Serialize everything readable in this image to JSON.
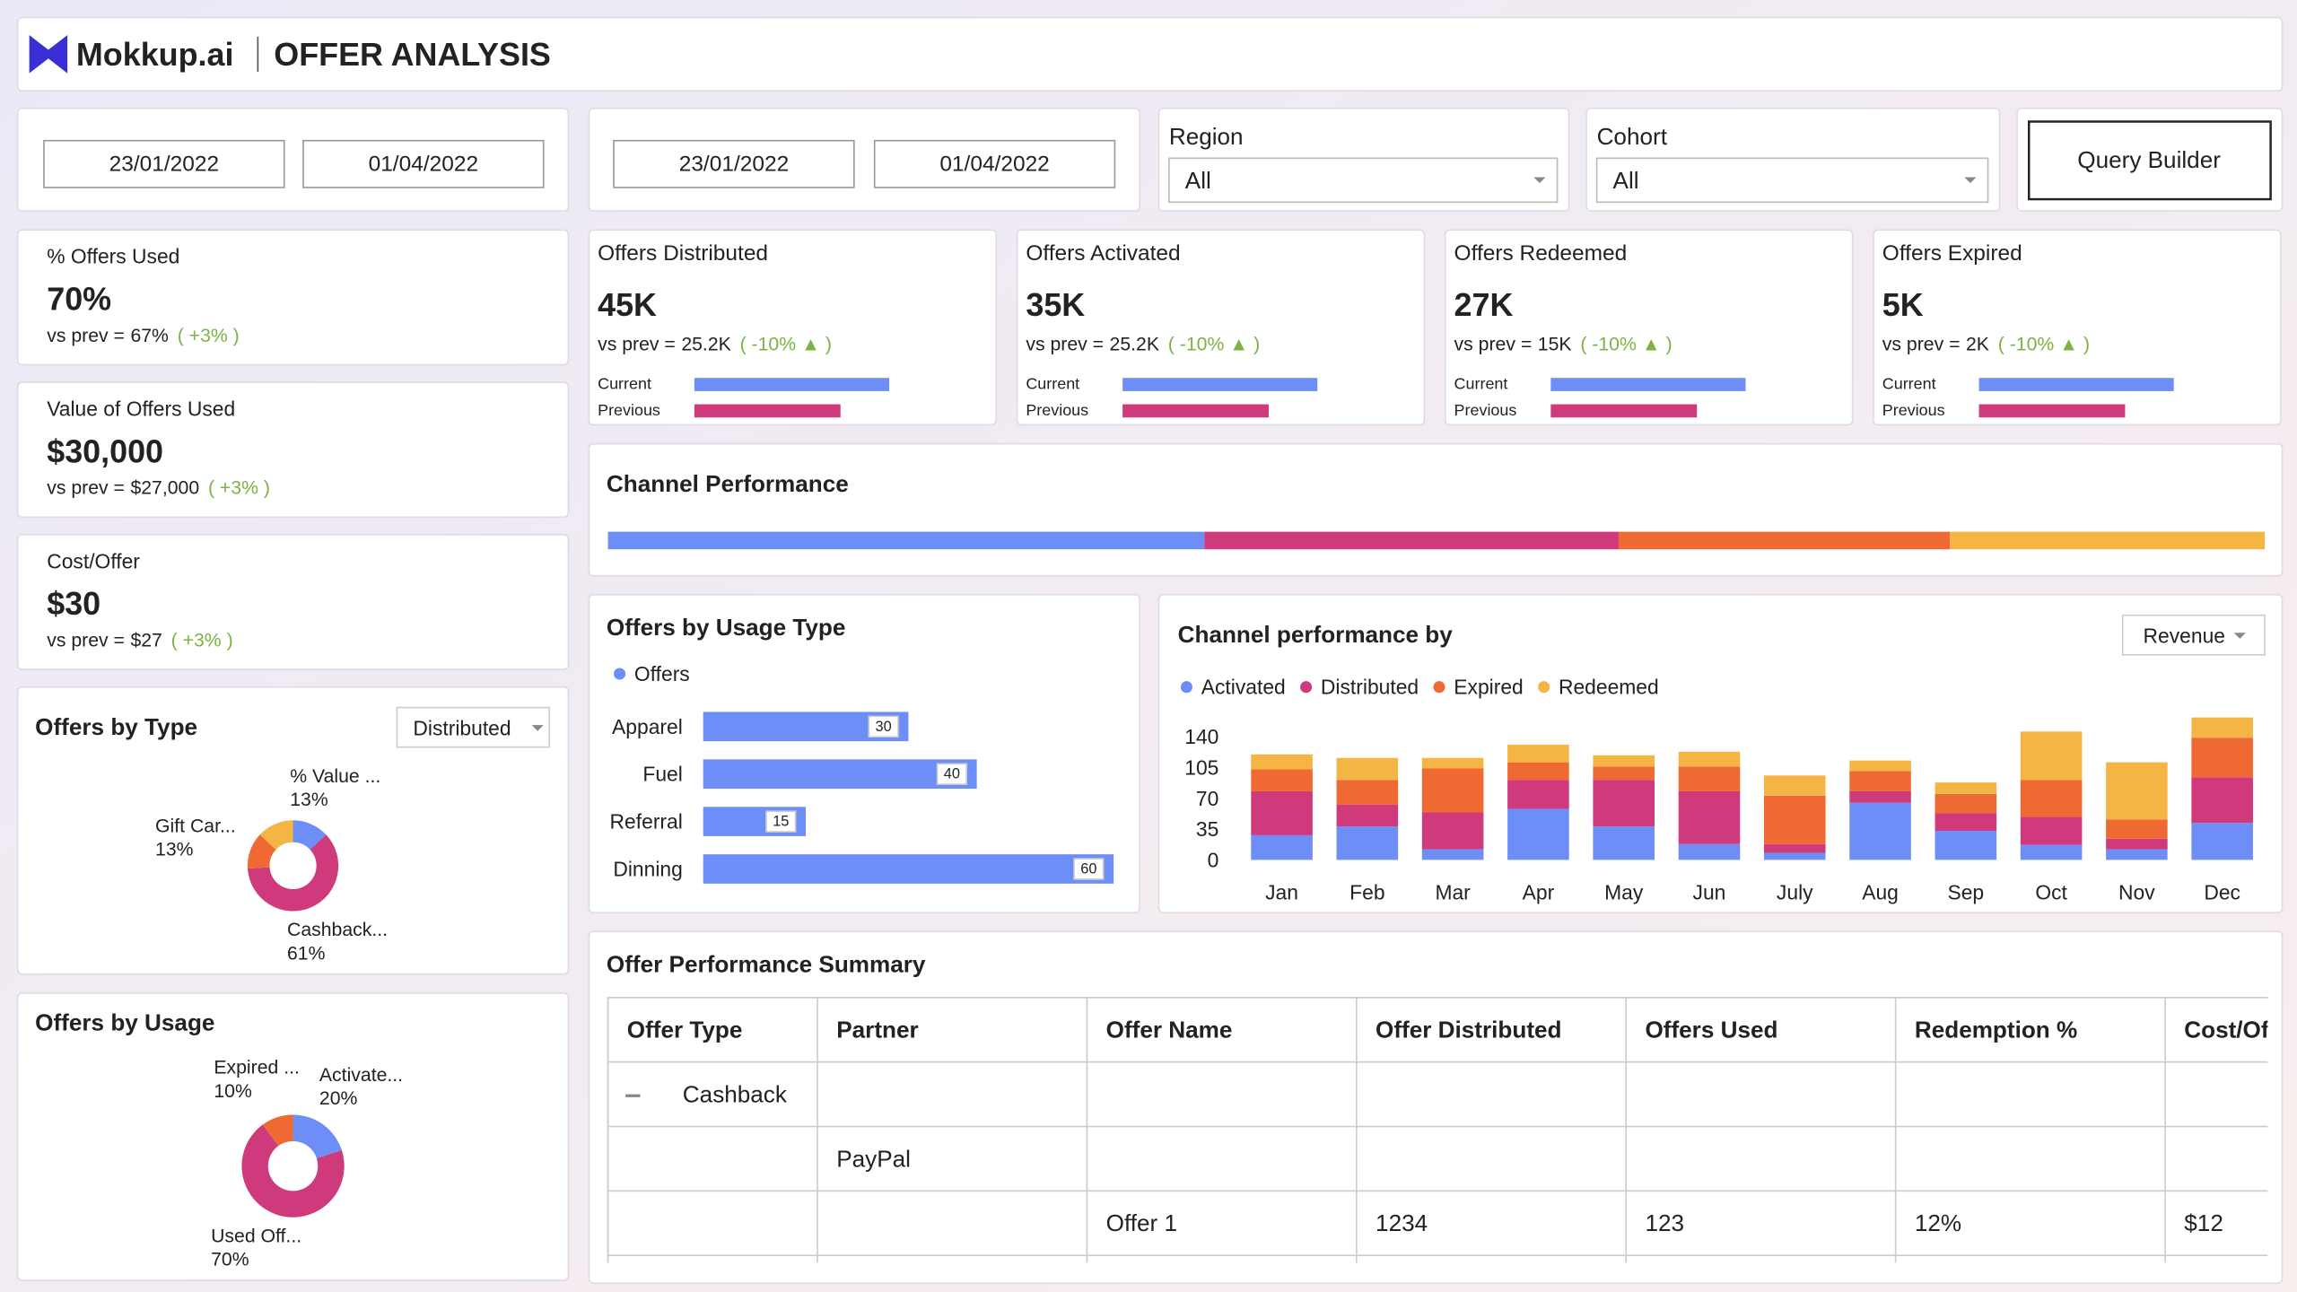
{
  "header": {
    "logo": "Mokkup.ai",
    "title": "OFFER ANALYSIS"
  },
  "filters": {
    "date_ranges": [
      [
        "23/01/2022",
        "01/04/2022"
      ],
      [
        "23/01/2022",
        "01/04/2022"
      ]
    ],
    "dropdowns": [
      {
        "label": "Region",
        "value": "All"
      },
      {
        "label": "Cohort",
        "value": "All"
      }
    ],
    "button": "Query Builder"
  },
  "summary_cards": [
    {
      "title": "% Offers Used",
      "value": "70%",
      "prev_label": "vs prev =",
      "prev": "67%",
      "change": "( +3% )"
    },
    {
      "title": "Value of Offers Used",
      "value": "$30,000",
      "prev_label": "vs prev =",
      "prev": "$27,000",
      "change": "( +3% )"
    },
    {
      "title": "Cost/Offer",
      "value": "$30",
      "prev_label": "vs prev =",
      "prev": "$27",
      "change": "( +3% )"
    }
  ],
  "kpi_cards": [
    {
      "title": "Offers Distributed",
      "value": "45K",
      "prev_label": "vs prev =",
      "prev": "25.2K",
      "change": "( -10% ▲ )",
      "bar_labels": [
        "Current",
        "Previous"
      ],
      "bars": [
        100,
        75
      ]
    },
    {
      "title": "Offers Activated",
      "value": "35K",
      "prev_label": "vs prev =",
      "prev": "25.2K",
      "change": "( -10% ▲ )",
      "bar_labels": [
        "Current",
        "Previous"
      ],
      "bars": [
        100,
        75
      ]
    },
    {
      "title": "Offers Redeemed",
      "value": "27K",
      "prev_label": "vs prev =",
      "prev": "15K",
      "change": "( -10% ▲ )",
      "bar_labels": [
        "Current",
        "Previous"
      ],
      "bars": [
        100,
        75
      ]
    },
    {
      "title": "Offers Expired",
      "value": "5K",
      "prev_label": "vs prev =",
      "prev": "2K",
      "change": "( -10% ▲ )",
      "bar_labels": [
        "Current",
        "Previous"
      ],
      "bars": [
        100,
        75
      ]
    }
  ],
  "channel_performance": {
    "title": "Channel Performance",
    "colors": [
      "#6e8ef7",
      "#cf3a7c",
      "#ef6a32",
      "#f4b545"
    ],
    "values": [
      36,
      25,
      20,
      19
    ]
  },
  "usage_type": {
    "title": "Offers by Usage Type",
    "series_name": "Offers",
    "color": "#6e8ef7",
    "categories": [
      "Apparel",
      "Fuel",
      "Referral",
      "Dinning"
    ],
    "values": [
      30,
      40,
      15,
      60
    ]
  },
  "monthly": {
    "title": "Channel performance by",
    "dropdown": "Revenue",
    "categories": [
      "Jan",
      "Feb",
      "Mar",
      "Apr",
      "May",
      "Jun",
      "July",
      "Aug",
      "Sep",
      "Oct",
      "Nov",
      "Dec"
    ],
    "series": [
      {
        "name": "Activated",
        "color": "#6e8ef7",
        "values": [
          28,
          38,
          12,
          58,
          38,
          18,
          8,
          65,
          33,
          17,
          12,
          42
        ]
      },
      {
        "name": "Distributed",
        "color": "#cf3a7c",
        "values": [
          50,
          25,
          42,
          33,
          53,
          60,
          10,
          13,
          20,
          32,
          12,
          52
        ]
      },
      {
        "name": "Expired",
        "color": "#ef6a32",
        "values": [
          25,
          28,
          50,
          20,
          15,
          28,
          55,
          23,
          22,
          42,
          22,
          45
        ]
      },
      {
        "name": "Redeemed",
        "color": "#f4b545",
        "values": [
          17,
          25,
          12,
          20,
          13,
          17,
          23,
          12,
          13,
          55,
          65,
          23
        ]
      }
    ],
    "ylim": [
      0,
      140
    ],
    "yticks": [
      0,
      35,
      70,
      105,
      140
    ]
  },
  "offers_by_type": {
    "title": "Offers by Type",
    "dropdown": "Distributed",
    "labels": [
      "% Value ...",
      "Cashback...",
      "Gift Car...",
      null
    ],
    "values": [
      13,
      61,
      13,
      13
    ],
    "value_labels": [
      "13%",
      "61%",
      "13%",
      null
    ],
    "colors": [
      "#6e8ef7",
      "#cf3a7c",
      "#ef6a32",
      "#f4b545"
    ]
  },
  "offers_by_usage": {
    "title": "Offers by Usage",
    "labels": [
      "Activate...",
      "Used Off...",
      "Expired ..."
    ],
    "values": [
      20,
      70,
      10
    ],
    "value_labels": [
      "20%",
      "70%",
      "10%"
    ],
    "colors": [
      "#6e8ef7",
      "#cf3a7c",
      "#ef6a32"
    ]
  },
  "table": {
    "title": "Offer Performance Summary",
    "columns": [
      "Offer Type",
      "Partner",
      "Offer Name",
      "Offer Distributed",
      "Offers Used",
      "Redemption %",
      "Cost/Offer"
    ],
    "rows": [
      [
        "Cashback",
        null,
        null,
        null,
        null,
        null,
        null
      ],
      [
        null,
        "PayPal",
        null,
        null,
        null,
        null,
        null
      ],
      [
        null,
        null,
        "Offer 1",
        "1234",
        "123",
        "12%",
        "$12"
      ]
    ]
  }
}
